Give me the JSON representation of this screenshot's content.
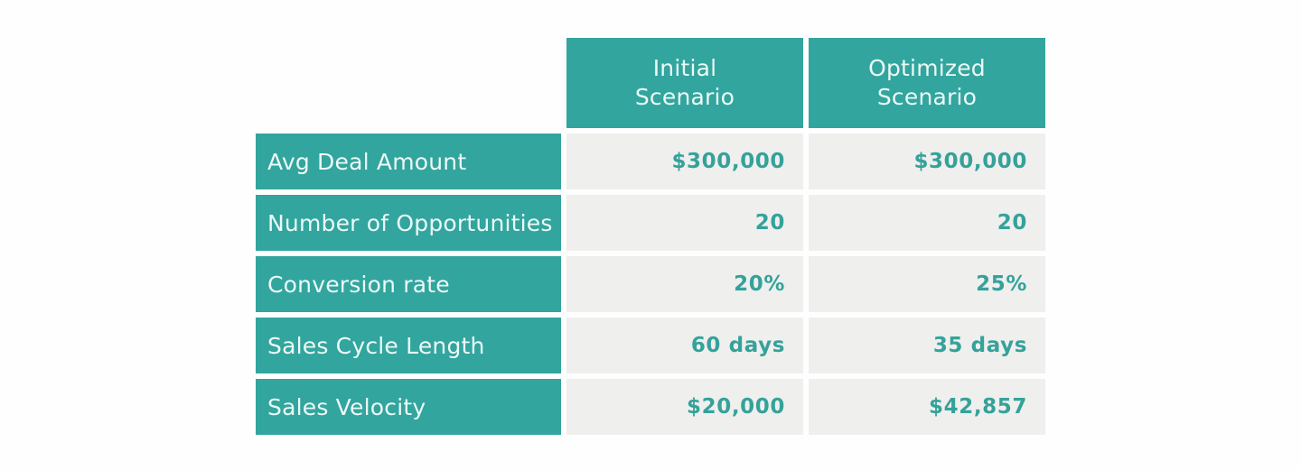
{
  "display": {
    "headers": [
      "Initial\nScenario",
      "Optimized\nScenario"
    ]
  },
  "chart_data": {
    "type": "table",
    "columns": [
      "",
      "Initial Scenario",
      "Optimized Scenario"
    ],
    "rows": [
      [
        "Avg Deal Amount",
        "$300,000",
        "$300,000"
      ],
      [
        "Number of Opportunities",
        "20",
        "20"
      ],
      [
        "Conversion rate",
        "20%",
        "25%"
      ],
      [
        "Sales Cycle Length",
        "60 days",
        "35 days"
      ],
      [
        "Sales Velocity",
        "$20,000",
        "$42,857"
      ]
    ]
  },
  "colors": {
    "teal": "#32a59e",
    "cell_bg": "#efefee",
    "light_text": "#ecf9f7",
    "value_text": "#35a29a",
    "background": "#fefefe"
  }
}
